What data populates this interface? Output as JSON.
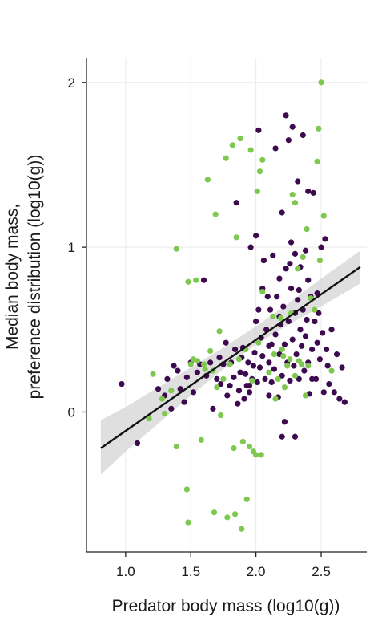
{
  "chart_data": {
    "type": "scatter",
    "title": "",
    "xlabel": "Predator body mass (log10(g))",
    "ylabel_line1": "Median body mass,",
    "ylabel_line2": "preference distribution (log10(g))",
    "xlim": [
      0.7,
      2.85
    ],
    "ylim": [
      -0.85,
      2.15
    ],
    "x_ticks": [
      1.0,
      1.5,
      2.0,
      2.5
    ],
    "x_tick_labels": [
      "1.0",
      "1.5",
      "2.0",
      "2.5"
    ],
    "y_ticks": [
      0,
      1,
      2
    ],
    "y_tick_labels": [
      "0",
      "1",
      "2"
    ],
    "grid": true,
    "legend": "none",
    "colors": {
      "series_a": "#3d0a4f",
      "series_b": "#7ec850",
      "fit_line": "#111111",
      "confidence_band": "#d4d4d4",
      "grid": "#ebebeb",
      "axis": "#222222"
    },
    "series": [
      {
        "color": "#3d0a4f",
        "points": [
          [
            0.97,
            0.17
          ],
          [
            1.09,
            -0.19
          ],
          [
            1.25,
            0.14
          ],
          [
            1.3,
            0.1
          ],
          [
            1.32,
            0.2
          ],
          [
            1.35,
            0.02
          ],
          [
            1.37,
            0.28
          ],
          [
            1.4,
            0.25
          ],
          [
            1.42,
            0.14
          ],
          [
            1.45,
            0.06
          ],
          [
            1.47,
            0.21
          ],
          [
            1.5,
            0.3
          ],
          [
            1.52,
            0.12
          ],
          [
            1.55,
            0.24
          ],
          [
            1.57,
            0.29
          ],
          [
            1.6,
            0.8
          ],
          [
            1.62,
            0.22
          ],
          [
            1.65,
            0.3
          ],
          [
            1.67,
            0.02
          ],
          [
            1.7,
            0.2
          ],
          [
            1.72,
            0.33
          ],
          [
            1.73,
            0.17
          ],
          [
            1.75,
            0.29
          ],
          [
            1.77,
            0.42
          ],
          [
            1.78,
            0.1
          ],
          [
            1.8,
            0.16
          ],
          [
            1.81,
            0.3
          ],
          [
            1.83,
            0.21
          ],
          [
            1.84,
            0.38
          ],
          [
            1.85,
            1.27
          ],
          [
            1.86,
            0.05
          ],
          [
            1.87,
            0.13
          ],
          [
            1.88,
            0.24
          ],
          [
            1.89,
            0.33
          ],
          [
            1.9,
            0.39
          ],
          [
            1.91,
            0.08
          ],
          [
            1.92,
            0.23
          ],
          [
            1.93,
            0.16
          ],
          [
            1.94,
            0.3
          ],
          [
            1.95,
            0.12
          ],
          [
            1.96,
            1.0
          ],
          [
            1.97,
            0.2
          ],
          [
            1.98,
            0.28
          ],
          [
            1.99,
            0.36
          ],
          [
            2.0,
            1.07
          ],
          [
            2.0,
            0.55
          ],
          [
            2.01,
            0.18
          ],
          [
            2.02,
            0.62
          ],
          [
            2.02,
            1.71
          ],
          [
            2.03,
            0.27
          ],
          [
            2.04,
            0.45
          ],
          [
            2.05,
            0.34
          ],
          [
            2.06,
            0.92
          ],
          [
            2.07,
            0.2
          ],
          [
            2.08,
            0.5
          ],
          [
            2.09,
            0.7
          ],
          [
            2.1,
            0.1
          ],
          [
            2.1,
            0.3
          ],
          [
            2.11,
            0.62
          ],
          [
            2.12,
            0.41
          ],
          [
            2.13,
            0.95
          ],
          [
            2.14,
            0.26
          ],
          [
            2.15,
            0.47
          ],
          [
            2.15,
            1.6
          ],
          [
            2.16,
            0.7
          ],
          [
            2.17,
            0.09
          ],
          [
            2.18,
            0.35
          ],
          [
            2.18,
            0.81
          ],
          [
            2.19,
            0.53
          ],
          [
            2.2,
            0.22
          ],
          [
            2.2,
            1.21
          ],
          [
            2.21,
            0.64
          ],
          [
            2.22,
            0.41
          ],
          [
            2.22,
            -0.06
          ],
          [
            2.23,
            0.87
          ],
          [
            2.23,
            1.8
          ],
          [
            2.24,
            0.3
          ],
          [
            2.25,
            0.55
          ],
          [
            2.25,
            1.65
          ],
          [
            2.26,
            0.19
          ],
          [
            2.27,
            0.75
          ],
          [
            2.27,
            1.03
          ],
          [
            2.28,
            0.44
          ],
          [
            2.28,
            1.73
          ],
          [
            2.29,
            0.28
          ],
          [
            2.3,
            0.6
          ],
          [
            2.3,
            0.96
          ],
          [
            2.31,
            0.35
          ],
          [
            2.32,
            0.68
          ],
          [
            2.32,
            1.4
          ],
          [
            2.33,
            0.2
          ],
          [
            2.34,
            0.5
          ],
          [
            2.34,
            0.88
          ],
          [
            2.35,
            0.4
          ],
          [
            2.36,
            0.62
          ],
          [
            2.36,
            1.68
          ],
          [
            2.37,
            0.25
          ],
          [
            2.38,
            0.46
          ],
          [
            2.38,
            0.98
          ],
          [
            2.39,
            0.56
          ],
          [
            2.4,
            0.3
          ],
          [
            2.4,
            0.8
          ],
          [
            2.41,
            0.11
          ],
          [
            2.42,
            0.7
          ],
          [
            2.43,
            0.38
          ],
          [
            2.44,
            1.33
          ],
          [
            2.45,
            0.55
          ],
          [
            2.46,
            0.2
          ],
          [
            2.47,
            0.42
          ],
          [
            2.48,
            0.6
          ],
          [
            2.49,
            0.32
          ],
          [
            2.5,
            1.0
          ],
          [
            2.51,
            0.48
          ],
          [
            2.52,
            0.12
          ],
          [
            2.53,
            1.05
          ],
          [
            2.54,
            0.38
          ],
          [
            2.55,
            0.28
          ],
          [
            2.56,
            0.17
          ],
          [
            2.58,
            0.5
          ],
          [
            2.6,
            0.12
          ],
          [
            2.62,
            0.35
          ],
          [
            2.64,
            0.08
          ],
          [
            2.66,
            0.27
          ],
          [
            2.68,
            0.06
          ],
          [
            2.2,
            -0.15
          ],
          [
            2.3,
            -0.15
          ],
          [
            1.95,
            0.16
          ],
          [
            2.05,
            0.75
          ],
          [
            2.12,
            0.18
          ],
          [
            2.18,
            0.58
          ],
          [
            2.26,
            0.9
          ],
          [
            2.33,
            0.74
          ],
          [
            2.43,
            0.2
          ],
          [
            2.47,
            0.72
          ],
          [
            2.4,
            1.34
          ],
          [
            2.1,
            0.4
          ]
        ]
      },
      {
        "color": "#7ec850",
        "points": [
          [
            1.18,
            -0.04
          ],
          [
            1.21,
            0.23
          ],
          [
            1.28,
            0.08
          ],
          [
            1.3,
            -0.01
          ],
          [
            1.35,
            0.13
          ],
          [
            1.39,
            0.99
          ],
          [
            1.39,
            -0.21
          ],
          [
            1.47,
            -0.47
          ],
          [
            1.48,
            -0.67
          ],
          [
            1.48,
            0.79
          ],
          [
            1.5,
            0.29
          ],
          [
            1.52,
            0.32
          ],
          [
            1.54,
            0.8
          ],
          [
            1.55,
            0.31
          ],
          [
            1.58,
            -0.17
          ],
          [
            1.61,
            0.26
          ],
          [
            1.63,
            1.41
          ],
          [
            1.65,
            0.37
          ],
          [
            1.67,
            0.25
          ],
          [
            1.68,
            -0.61
          ],
          [
            1.69,
            1.2
          ],
          [
            1.7,
            0.15
          ],
          [
            1.72,
            0.49
          ],
          [
            1.73,
            -0.02
          ],
          [
            1.75,
            0.2
          ],
          [
            1.77,
            1.54
          ],
          [
            1.78,
            -0.64
          ],
          [
            1.8,
            0.29
          ],
          [
            1.82,
            1.62
          ],
          [
            1.83,
            -0.22
          ],
          [
            1.84,
            -0.62
          ],
          [
            1.85,
            1.06
          ],
          [
            1.87,
            0.32
          ],
          [
            1.88,
            1.66
          ],
          [
            1.89,
            -0.71
          ],
          [
            1.9,
            -0.18
          ],
          [
            1.92,
            0.38
          ],
          [
            1.93,
            -0.53
          ],
          [
            1.95,
            -0.21
          ],
          [
            1.96,
            1.59
          ],
          [
            1.97,
            0.19
          ],
          [
            1.98,
            -0.24
          ],
          [
            2.0,
            -0.26
          ],
          [
            2.01,
            1.34
          ],
          [
            2.02,
            0.42
          ],
          [
            2.03,
            1.46
          ],
          [
            2.04,
            -0.26
          ],
          [
            2.05,
            1.53
          ],
          [
            2.05,
            0.73
          ],
          [
            2.1,
            0.24
          ],
          [
            2.13,
            0.58
          ],
          [
            2.15,
            0.08
          ],
          [
            2.17,
            0.2
          ],
          [
            2.19,
            0.57
          ],
          [
            2.2,
            0.38
          ],
          [
            2.21,
            0.34
          ],
          [
            2.22,
            0.15
          ],
          [
            2.24,
            0.28
          ],
          [
            2.26,
            0.32
          ],
          [
            2.27,
            0.6
          ],
          [
            2.28,
            1.32
          ],
          [
            2.3,
            0.22
          ],
          [
            2.32,
            0.87
          ],
          [
            2.33,
            0.31
          ],
          [
            2.35,
            0.29
          ],
          [
            2.36,
            0.94
          ],
          [
            2.38,
            0.1
          ],
          [
            2.39,
            1.11
          ],
          [
            2.4,
            0.28
          ],
          [
            2.42,
            0.69
          ],
          [
            2.45,
            0.62
          ],
          [
            2.47,
            1.52
          ],
          [
            2.48,
            1.72
          ],
          [
            2.49,
            0.92
          ],
          [
            2.5,
            2.0
          ],
          [
            2.52,
            1.19
          ],
          [
            2.58,
            0.25
          ],
          [
            2.3,
            1.27
          ],
          [
            2.14,
            0.35
          ],
          [
            1.6,
            0.29
          ]
        ]
      }
    ],
    "fit_line": {
      "x": [
        0.81,
        2.8
      ],
      "y": [
        -0.22,
        0.88
      ]
    },
    "confidence_band": {
      "x": [
        0.81,
        1.0,
        1.25,
        1.5,
        1.75,
        2.0,
        2.25,
        2.5,
        2.8
      ],
      "lower": [
        -0.38,
        -0.24,
        -0.07,
        0.1,
        0.26,
        0.41,
        0.53,
        0.64,
        0.78
      ],
      "upper": [
        -0.05,
        0.03,
        0.15,
        0.27,
        0.39,
        0.52,
        0.66,
        0.81,
        0.98
      ]
    }
  }
}
